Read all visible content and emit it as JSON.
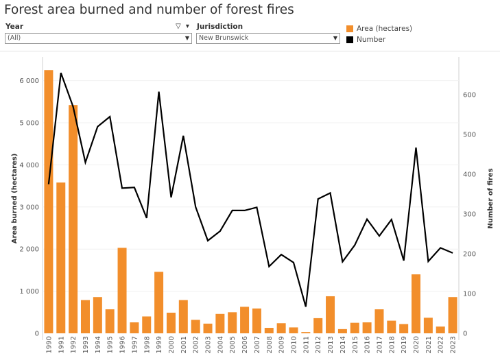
{
  "title": "Forest area burned and number of forest fires",
  "filters": {
    "year": {
      "label": "Year",
      "value": "(All)"
    },
    "jurisdiction": {
      "label": "Jurisdiction",
      "value": "New Brunswick"
    }
  },
  "legend": [
    {
      "label": "Area (hectares)",
      "color": "#f28e2b"
    },
    {
      "label": "Number",
      "color": "#000000"
    }
  ],
  "chart_data": {
    "type": "bar",
    "title": "Forest area burned and number of forest fires",
    "ylabel": "Area burned (hectares)",
    "y2label": "Number of fires",
    "ylim": [
      0,
      6400
    ],
    "y2lim": [
      0,
      678
    ],
    "yticks": [
      "0",
      "1 000",
      "2 000",
      "3 000",
      "4 000",
      "5 000",
      "6 000"
    ],
    "y2ticks": [
      "0",
      "100",
      "200",
      "300",
      "400",
      "500",
      "600"
    ],
    "categories": [
      "1990",
      "1991",
      "1992",
      "1993",
      "1994",
      "1995",
      "1996",
      "1997",
      "1998",
      "1999",
      "2000",
      "2001",
      "2002",
      "2003",
      "2004",
      "2005",
      "2006",
      "2007",
      "2008",
      "2009",
      "2010",
      "2011",
      "2012",
      "2013",
      "2014",
      "2015",
      "2016",
      "2017",
      "2018",
      "2019",
      "2020",
      "2021",
      "2022",
      "2023"
    ],
    "series": [
      {
        "name": "Area (hectares)",
        "type": "bar",
        "axis": "left",
        "color": "#f28e2b",
        "values": [
          6250,
          3580,
          5420,
          790,
          860,
          570,
          2030,
          260,
          400,
          1460,
          490,
          790,
          320,
          230,
          460,
          500,
          630,
          590,
          130,
          240,
          140,
          30,
          360,
          880,
          100,
          250,
          260,
          570,
          300,
          220,
          1400,
          370,
          160,
          860
        ]
      },
      {
        "name": "Number",
        "type": "line",
        "axis": "right",
        "color": "#000000",
        "values": [
          375,
          655,
          570,
          430,
          520,
          545,
          365,
          367,
          290,
          608,
          342,
          497,
          318,
          233,
          257,
          309,
          309,
          317,
          168,
          198,
          178,
          67,
          338,
          353,
          180,
          222,
          287,
          245,
          286,
          183,
          467,
          181,
          215,
          202
        ]
      }
    ],
    "grid": true,
    "legend_position": "top-right"
  }
}
